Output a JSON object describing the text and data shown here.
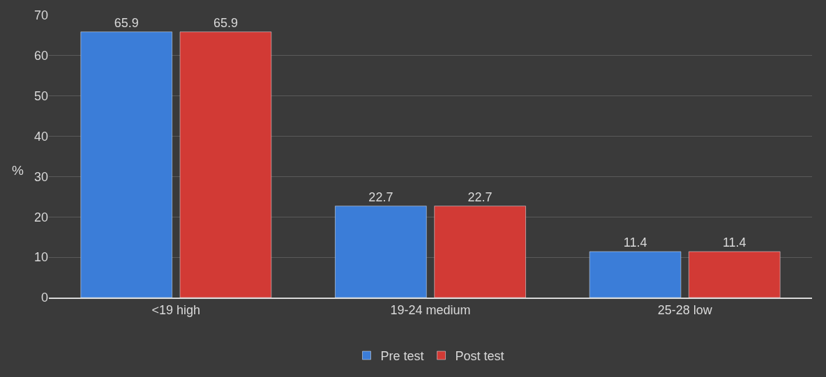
{
  "chart_data": {
    "type": "bar",
    "ylabel": "%",
    "categories": [
      "<19 high",
      "19-24 medium",
      "25-28 low"
    ],
    "series": [
      {
        "name": "Pre test",
        "color": "#3b7dd8",
        "values": [
          65.9,
          22.7,
          11.4
        ]
      },
      {
        "name": "Post test",
        "color": "#d23a35",
        "values": [
          65.9,
          22.7,
          11.4
        ]
      }
    ],
    "ylim": [
      0,
      70
    ],
    "yticks": [
      0,
      10,
      20,
      30,
      40,
      50,
      60,
      70
    ],
    "data_labels": true,
    "grid": "y",
    "legend": "bottom"
  }
}
